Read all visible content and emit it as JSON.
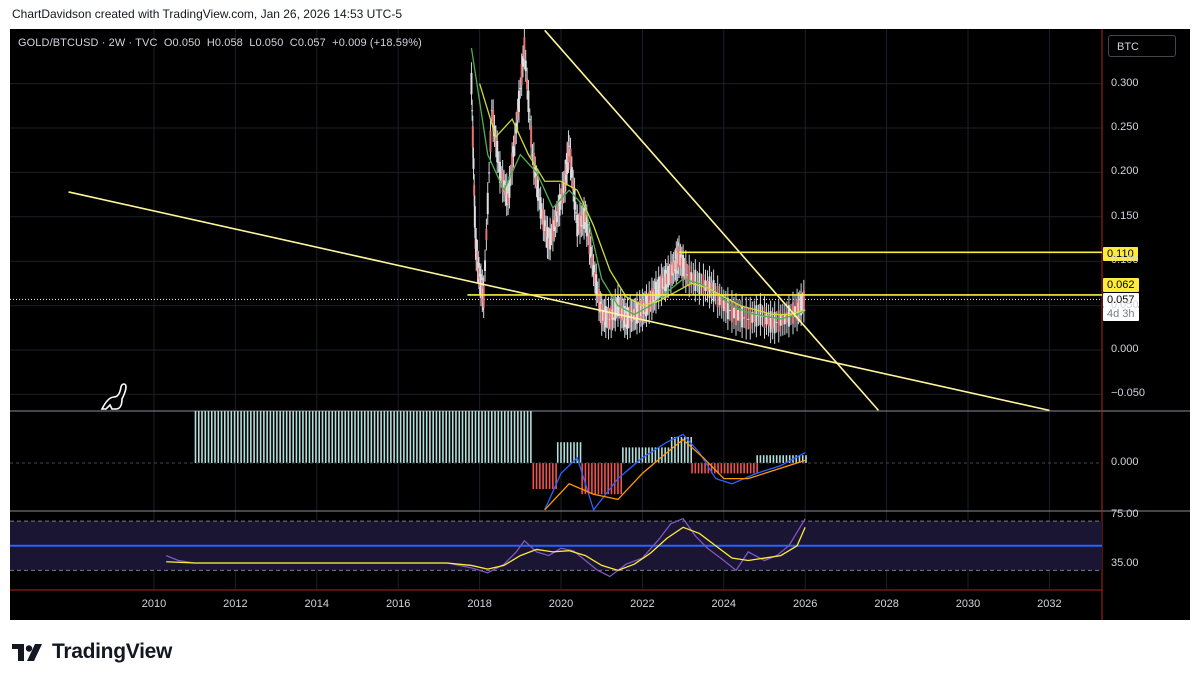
{
  "caption": "ChartDavidson created with TradingView.com, Jan 26, 2026 14:53 UTC-5",
  "legend": {
    "symbol": "GOLD/BTCUSD · 2W · TVC",
    "open_label": "O",
    "open": "0.050",
    "high_label": "H",
    "high": "0.058",
    "low_label": "L",
    "low": "0.050",
    "close_label": "C",
    "close": "0.057",
    "change": "+0.009 (+18.59%)"
  },
  "currency_button": "BTC",
  "brand": "TradingView",
  "colors": {
    "background": "#000000",
    "trendline": "#fff59d",
    "level": "#ffeb3b",
    "ema_fast": "#4caf50",
    "ema_slow": "#cddc39",
    "macd": "#2962ff",
    "signal": "#ff9800",
    "rsi": "#7e57c2",
    "rsi_ma": "#ffeb3b",
    "hist_pos": "#b2dfdb",
    "hist_neg": "#ef5350"
  },
  "chart_data": [
    {
      "type": "line",
      "name": "price",
      "x_ticks": [
        "2010",
        "2012",
        "2014",
        "2016",
        "2018",
        "2020",
        "2022",
        "2024",
        "2026",
        "2028",
        "2030",
        "2032"
      ],
      "y_ticks": [
        "0.300",
        "0.250",
        "0.200",
        "0.150",
        "0.100",
        "0.050",
        "0.000",
        "−0.050"
      ],
      "ylim": [
        -0.07,
        0.36
      ],
      "xlim": [
        2007.9,
        2033.4
      ],
      "last_price": "0.057",
      "countdown": "4d 3h",
      "levels": [
        {
          "label": "0.110",
          "value": 0.11
        },
        {
          "label": "0.062",
          "value": 0.062
        }
      ],
      "trendlines": [
        {
          "from": [
            2007.9,
            0.178
          ],
          "to": [
            2032.0,
            -0.068
          ]
        },
        {
          "from": [
            2019.6,
            0.36
          ],
          "to": [
            2027.8,
            -0.068
          ]
        }
      ],
      "series": [
        {
          "values": [
            [
              2017.8,
              0.3
            ],
            [
              2017.9,
              0.12
            ],
            [
              2018.0,
              0.08
            ],
            [
              2018.1,
              0.06
            ],
            [
              2018.3,
              0.27
            ],
            [
              2018.5,
              0.2
            ],
            [
              2018.7,
              0.17
            ],
            [
              2018.9,
              0.25
            ],
            [
              2019.1,
              0.34
            ],
            [
              2019.3,
              0.22
            ],
            [
              2019.5,
              0.16
            ],
            [
              2019.7,
              0.12
            ],
            [
              2019.9,
              0.15
            ],
            [
              2020.1,
              0.19
            ],
            [
              2020.2,
              0.23
            ],
            [
              2020.4,
              0.14
            ],
            [
              2020.6,
              0.15
            ],
            [
              2020.8,
              0.09
            ],
            [
              2021.0,
              0.04
            ],
            [
              2021.2,
              0.035
            ],
            [
              2021.4,
              0.05
            ],
            [
              2021.6,
              0.035
            ],
            [
              2021.8,
              0.04
            ],
            [
              2022.0,
              0.045
            ],
            [
              2022.2,
              0.055
            ],
            [
              2022.4,
              0.07
            ],
            [
              2022.6,
              0.08
            ],
            [
              2022.8,
              0.095
            ],
            [
              2022.9,
              0.105
            ],
            [
              2023.1,
              0.085
            ],
            [
              2023.4,
              0.075
            ],
            [
              2023.7,
              0.07
            ],
            [
              2024.0,
              0.05
            ],
            [
              2024.3,
              0.04
            ],
            [
              2024.6,
              0.035
            ],
            [
              2024.9,
              0.04
            ],
            [
              2025.2,
              0.03
            ],
            [
              2025.5,
              0.035
            ],
            [
              2025.8,
              0.045
            ],
            [
              2026.0,
              0.057
            ]
          ]
        },
        {
          "values": [
            [
              2017.8,
              0.34
            ],
            [
              2018.2,
              0.22
            ],
            [
              2018.6,
              0.18
            ],
            [
              2019.0,
              0.22
            ],
            [
              2019.4,
              0.2
            ],
            [
              2019.8,
              0.16
            ],
            [
              2020.2,
              0.18
            ],
            [
              2020.6,
              0.16
            ],
            [
              2021.0,
              0.08
            ],
            [
              2021.4,
              0.05
            ],
            [
              2021.8,
              0.04
            ],
            [
              2022.2,
              0.05
            ],
            [
              2022.6,
              0.065
            ],
            [
              2023.0,
              0.08
            ],
            [
              2023.4,
              0.075
            ],
            [
              2023.8,
              0.065
            ],
            [
              2024.2,
              0.05
            ],
            [
              2024.6,
              0.042
            ],
            [
              2025.0,
              0.038
            ],
            [
              2025.4,
              0.035
            ],
            [
              2025.8,
              0.04
            ],
            [
              2026.0,
              0.045
            ]
          ]
        },
        {
          "values": [
            [
              2018.0,
              0.3
            ],
            [
              2018.4,
              0.24
            ],
            [
              2018.8,
              0.26
            ],
            [
              2019.2,
              0.22
            ],
            [
              2019.6,
              0.19
            ],
            [
              2020.0,
              0.19
            ],
            [
              2020.4,
              0.18
            ],
            [
              2020.8,
              0.14
            ],
            [
              2021.2,
              0.09
            ],
            [
              2021.6,
              0.06
            ],
            [
              2022.0,
              0.05
            ],
            [
              2022.4,
              0.055
            ],
            [
              2022.8,
              0.065
            ],
            [
              2023.2,
              0.075
            ],
            [
              2023.6,
              0.07
            ],
            [
              2024.0,
              0.06
            ],
            [
              2024.4,
              0.05
            ],
            [
              2024.8,
              0.045
            ],
            [
              2025.2,
              0.04
            ],
            [
              2025.6,
              0.04
            ],
            [
              2026.0,
              0.045
            ]
          ]
        }
      ]
    },
    {
      "type": "bar",
      "name": "macd",
      "y_ticks": [
        "0.000"
      ],
      "bars": [
        {
          "from": 2011.0,
          "to": 2019.3,
          "value": 1.0
        },
        {
          "from": 2019.3,
          "to": 2019.9,
          "value": -0.5
        },
        {
          "from": 2019.9,
          "to": 2020.5,
          "value": 0.4
        },
        {
          "from": 2020.5,
          "to": 2021.5,
          "value": -0.6
        },
        {
          "from": 2021.5,
          "to": 2022.7,
          "value": 0.3
        },
        {
          "from": 2022.7,
          "to": 2023.2,
          "value": 0.5
        },
        {
          "from": 2023.2,
          "to": 2024.8,
          "value": -0.2
        },
        {
          "from": 2024.8,
          "to": 2026.0,
          "value": 0.15
        }
      ],
      "series": [
        {
          "values": [
            [
              2019.6,
              -0.9
            ],
            [
              2020.0,
              -0.2
            ],
            [
              2020.4,
              0.1
            ],
            [
              2020.8,
              -0.9
            ],
            [
              2021.4,
              -0.3
            ],
            [
              2022.0,
              0.1
            ],
            [
              2022.6,
              0.4
            ],
            [
              2023.0,
              0.55
            ],
            [
              2023.4,
              0.2
            ],
            [
              2023.8,
              -0.3
            ],
            [
              2024.2,
              -0.4
            ],
            [
              2024.8,
              -0.2
            ],
            [
              2025.4,
              -0.05
            ],
            [
              2026.0,
              0.2
            ]
          ]
        },
        {
          "values": [
            [
              2019.6,
              -0.9
            ],
            [
              2020.2,
              -0.4
            ],
            [
              2020.8,
              -0.6
            ],
            [
              2021.4,
              -0.7
            ],
            [
              2022.0,
              -0.2
            ],
            [
              2022.6,
              0.2
            ],
            [
              2023.0,
              0.45
            ],
            [
              2023.5,
              0.1
            ],
            [
              2024.0,
              -0.3
            ],
            [
              2024.6,
              -0.3
            ],
            [
              2025.2,
              -0.15
            ],
            [
              2026.0,
              0.05
            ]
          ]
        }
      ]
    },
    {
      "type": "line",
      "name": "rsi",
      "y_ticks": [
        "75.00",
        "35.00"
      ],
      "ylim": [
        15,
        80
      ],
      "bands": [
        30,
        70
      ],
      "midline": 50,
      "series": [
        {
          "values": [
            [
              2010.3,
              42
            ],
            [
              2010.6,
              38
            ],
            [
              2011.0,
              36
            ],
            [
              2012.0,
              36
            ],
            [
              2014.0,
              36
            ],
            [
              2016.0,
              36
            ],
            [
              2017.2,
              36
            ],
            [
              2017.8,
              32
            ],
            [
              2018.2,
              28
            ],
            [
              2018.6,
              35
            ],
            [
              2018.9,
              45
            ],
            [
              2019.1,
              54
            ],
            [
              2019.4,
              45
            ],
            [
              2019.7,
              42
            ],
            [
              2020.0,
              48
            ],
            [
              2020.3,
              46
            ],
            [
              2020.6,
              38
            ],
            [
              2020.9,
              30
            ],
            [
              2021.2,
              25
            ],
            [
              2021.6,
              35
            ],
            [
              2022.0,
              40
            ],
            [
              2022.4,
              55
            ],
            [
              2022.7,
              68
            ],
            [
              2023.0,
              72
            ],
            [
              2023.3,
              58
            ],
            [
              2023.6,
              48
            ],
            [
              2024.0,
              38
            ],
            [
              2024.3,
              30
            ],
            [
              2024.6,
              45
            ],
            [
              2025.0,
              38
            ],
            [
              2025.3,
              42
            ],
            [
              2025.6,
              50
            ],
            [
              2026.0,
              72
            ]
          ]
        },
        {
          "values": [
            [
              2010.3,
              37
            ],
            [
              2011.0,
              36
            ],
            [
              2012.0,
              36
            ],
            [
              2014.0,
              36
            ],
            [
              2016.0,
              36
            ],
            [
              2017.2,
              36
            ],
            [
              2017.8,
              34
            ],
            [
              2018.2,
              31
            ],
            [
              2018.6,
              34
            ],
            [
              2019.0,
              42
            ],
            [
              2019.4,
              47
            ],
            [
              2019.8,
              45
            ],
            [
              2020.2,
              46
            ],
            [
              2020.6,
              42
            ],
            [
              2021.0,
              34
            ],
            [
              2021.4,
              30
            ],
            [
              2021.8,
              35
            ],
            [
              2022.2,
              44
            ],
            [
              2022.6,
              56
            ],
            [
              2023.0,
              65
            ],
            [
              2023.4,
              60
            ],
            [
              2023.8,
              50
            ],
            [
              2024.2,
              40
            ],
            [
              2024.6,
              38
            ],
            [
              2025.0,
              40
            ],
            [
              2025.4,
              42
            ],
            [
              2025.8,
              50
            ],
            [
              2026.0,
              65
            ]
          ]
        }
      ]
    }
  ]
}
